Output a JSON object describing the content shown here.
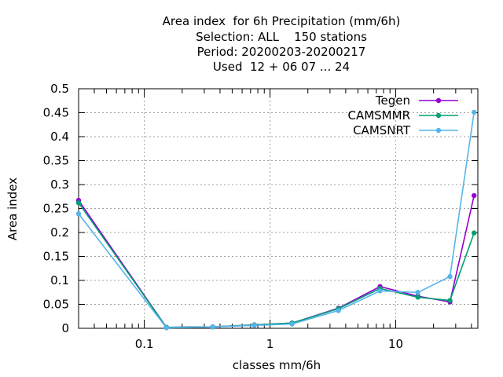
{
  "chart_data": {
    "type": "line",
    "title_lines": [
      "Area index  for 6h Precipitation (mm/6h)",
      "Selection: ALL    150 stations",
      "Period: 20200203-20200217",
      "Used  12 + 06 07 ... 24"
    ],
    "xlabel": "classes mm/6h",
    "ylabel": "Area index",
    "x_scale": "log",
    "xlim": [
      0.03,
      45
    ],
    "ylim": [
      0,
      0.5
    ],
    "grid": true,
    "legend_position": "top-right",
    "x_ticks": [
      0.1,
      1,
      10
    ],
    "x_tick_labels": [
      "0.1",
      "1",
      "10"
    ],
    "y_ticks": [
      0,
      0.05,
      0.1,
      0.15,
      0.2,
      0.25,
      0.3,
      0.35,
      0.4,
      0.45,
      0.5
    ],
    "y_tick_labels": [
      "0",
      "0.05",
      "0.1",
      "0.15",
      "0.2",
      "0.25",
      "0.3",
      "0.35",
      "0.4",
      "0.45",
      "0.5"
    ],
    "x": [
      0.03,
      0.15,
      0.35,
      0.75,
      1.5,
      3.5,
      7.5,
      15,
      27,
      42
    ],
    "series": [
      {
        "name": "Tegen",
        "color": "#9400d3",
        "values": [
          0.267,
          0.002,
          0.003,
          0.007,
          0.011,
          0.042,
          0.087,
          0.067,
          0.055,
          0.277
        ]
      },
      {
        "name": "CAMSMMR",
        "color": "#009e73",
        "values": [
          0.262,
          0.002,
          0.003,
          0.007,
          0.011,
          0.041,
          0.083,
          0.065,
          0.058,
          0.199
        ]
      },
      {
        "name": "CAMSNRT",
        "color": "#56b4e9",
        "values": [
          0.239,
          0.001,
          0.003,
          0.006,
          0.009,
          0.037,
          0.078,
          0.075,
          0.108,
          0.451
        ]
      }
    ]
  }
}
